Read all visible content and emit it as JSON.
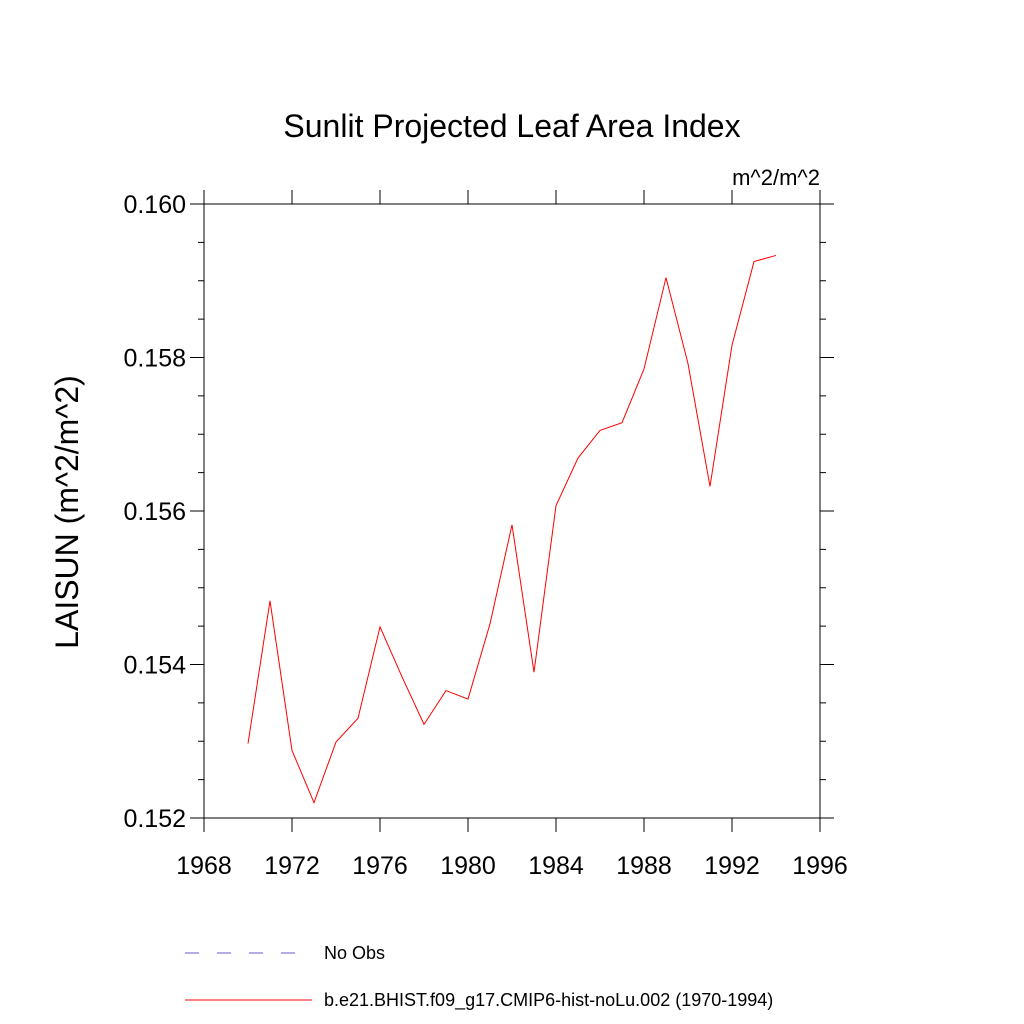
{
  "chart_data": {
    "type": "line",
    "title": "Sunlit Projected Leaf Area Index",
    "units": "m^2/m^2",
    "ylabel": "LAISUN  (m^2/m^2)",
    "xlabel": "",
    "xlim": [
      1968,
      1996
    ],
    "ylim": [
      0.152,
      0.16
    ],
    "x_major_ticks": [
      1968,
      1972,
      1976,
      1980,
      1984,
      1988,
      1992,
      1996
    ],
    "x_tick_labels": [
      "1968",
      "1972",
      "1976",
      "1980",
      "1984",
      "1988",
      "1992",
      "1996"
    ],
    "y_major_ticks": [
      0.152,
      0.154,
      0.156,
      0.158,
      0.16
    ],
    "y_tick_labels": [
      "0.152",
      "0.154",
      "0.156",
      "0.158",
      "0.160"
    ],
    "y_minor_step": 0.0005,
    "x": [
      1970,
      1971,
      1972,
      1973,
      1974,
      1975,
      1976,
      1977,
      1978,
      1979,
      1980,
      1981,
      1982,
      1983,
      1984,
      1985,
      1986,
      1987,
      1988,
      1989,
      1990,
      1991,
      1992,
      1993,
      1994
    ],
    "series": [
      {
        "name": "b.e21.BHIST.f09_g17.CMIP6-hist-noLu.002 (1970-1994)",
        "color": "#ff0000",
        "values": [
          0.15297,
          0.15483,
          0.15288,
          0.1522,
          0.15299,
          0.1533,
          0.15449,
          0.15384,
          0.15322,
          0.15366,
          0.15355,
          0.15453,
          0.15582,
          0.1539,
          0.15607,
          0.15669,
          0.15705,
          0.15715,
          0.15785,
          0.15904,
          0.15792,
          0.15632,
          0.15816,
          0.15925,
          0.15933
        ]
      }
    ],
    "legend": [
      {
        "label": "No Obs",
        "color": "#6a5acd",
        "style": "dashed"
      },
      {
        "label": "b.e21.BHIST.f09_g17.CMIP6-hist-noLu.002 (1970-1994)",
        "color": "#ff0000",
        "style": "solid"
      }
    ],
    "legend_position": "bottom-center"
  }
}
